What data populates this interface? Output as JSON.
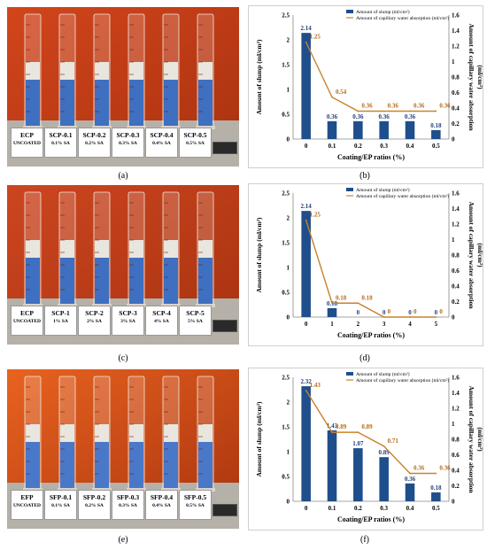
{
  "panels": {
    "a": "(a)",
    "b": "(b)",
    "c": "(c)",
    "d": "(d)",
    "e": "(e)",
    "f": "(f)"
  },
  "photo_a": {
    "cards": [
      {
        "main": "ECP",
        "sub": "UNCOATED"
      },
      {
        "main": "SCP-0.1",
        "sub": "0.1% SA"
      },
      {
        "main": "SCP-0.2",
        "sub": "0.2% SA"
      },
      {
        "main": "SCP-0.3",
        "sub": "0.3% SA"
      },
      {
        "main": "SCP-0.4",
        "sub": "0.4% SA"
      },
      {
        "main": "SCP-0.5",
        "sub": "0.5% SA"
      }
    ],
    "meter": "",
    "colors": {
      "wall": "#d2451c",
      "fill": "#3f6fc0"
    }
  },
  "photo_c": {
    "cards": [
      {
        "main": "ECP",
        "sub": "UNCOATED"
      },
      {
        "main": "SCP-1",
        "sub": "1% SA"
      },
      {
        "main": "SCP-2",
        "sub": "2% SA"
      },
      {
        "main": "SCP-3",
        "sub": "3% SA"
      },
      {
        "main": "SCP-4",
        "sub": "4% SA"
      },
      {
        "main": "SCP-5",
        "sub": "5% SA"
      }
    ],
    "meter": "",
    "colors": {
      "wall": "#cc4620",
      "fill": "#3f6fc0"
    }
  },
  "photo_e": {
    "cards": [
      {
        "main": "EFP",
        "sub": "UNCOATED"
      },
      {
        "main": "SFP-0.1",
        "sub": "0.1% SA"
      },
      {
        "main": "SFP-0.2",
        "sub": "0.2% SA"
      },
      {
        "main": "SFP-0.3",
        "sub": "0.3% SA"
      },
      {
        "main": "SFP-0.4",
        "sub": "0.4% SA"
      },
      {
        "main": "SFP-0.5",
        "sub": "0.5% SA"
      }
    ],
    "meter": "",
    "colors": {
      "wall": "#e8631f",
      "fill": "#4a78c8"
    }
  },
  "chart_data": [
    {
      "panel": "b",
      "type": "bar+line",
      "categories": [
        "0",
        "0.1",
        "0.2",
        "0.3",
        "0.4",
        "0.5"
      ],
      "series": [
        {
          "name": "Amount of slump (ml/cm²)",
          "type": "bar",
          "axis": "left",
          "values": [
            2.14,
            0.36,
            0.36,
            0.36,
            0.36,
            0.18
          ],
          "labels": [
            "2.14",
            "0.36",
            "0.36",
            "0.36",
            "0.36",
            "0.18"
          ]
        },
        {
          "name": "Amount of capillary water absorption (ml/cm²)",
          "type": "line",
          "axis": "right",
          "values": [
            1.25,
            0.54,
            0.36,
            0.36,
            0.36,
            0.36
          ],
          "labels": [
            "1.25",
            "0.54",
            "0.36",
            "0.36",
            "0.36",
            "0.36"
          ]
        }
      ],
      "xlabel": "Coating/EP ratios (%)",
      "ylabel": "Amount of slump (ml/cm²)",
      "y2label": "Amount of capillary water absorption (ml/cm²)",
      "ylim": [
        0,
        2.5
      ],
      "yticks": [
        "0",
        "0.5",
        "1",
        "1.5",
        "2",
        "2.5"
      ],
      "y2lim": [
        0,
        1.6
      ],
      "y2ticks": [
        "0",
        "0.2",
        "0.4",
        "0.6",
        "0.8",
        "1",
        "1.2",
        "1.4",
        "1.6"
      ],
      "legend": "top-right",
      "grid": false,
      "colors": {
        "bar": "#1f4e8c",
        "line": "#c9822b",
        "barlabel": "#1f3f7a",
        "linelabel": "#b36b1a"
      }
    },
    {
      "panel": "d",
      "type": "bar+line",
      "categories": [
        "0",
        "1",
        "2",
        "3",
        "4",
        "5"
      ],
      "series": [
        {
          "name": "Amount of slump (ml/cm²)",
          "type": "bar",
          "axis": "left",
          "values": [
            2.14,
            0.18,
            0,
            0,
            0,
            0
          ],
          "labels": [
            "2.14",
            "0.18",
            "0",
            "0",
            "0",
            "0"
          ]
        },
        {
          "name": "Amount of capillary water absorption (ml/cm²)",
          "type": "line",
          "axis": "right",
          "values": [
            1.25,
            0.18,
            0.18,
            0,
            0,
            0
          ],
          "labels": [
            "1.25",
            "0.18",
            "0.18",
            "0",
            "0",
            "0"
          ]
        }
      ],
      "xlabel": "Coating/EP ratios (%)",
      "ylabel": "Amount of slump (ml/cm²)",
      "y2label": "Amount of capillary water absorption (ml/cm²)",
      "ylim": [
        0,
        2.5
      ],
      "yticks": [
        "0",
        "0.5",
        "1",
        "1.5",
        "2",
        "2.5"
      ],
      "y2lim": [
        0,
        1.6
      ],
      "y2ticks": [
        "0",
        "0.2",
        "0.4",
        "0.6",
        "0.8",
        "1",
        "1.2",
        "1.4",
        "1.6"
      ],
      "legend": "top-right",
      "grid": false,
      "colors": {
        "bar": "#1f4e8c",
        "line": "#c9822b",
        "barlabel": "#1f3f7a",
        "linelabel": "#b36b1a"
      }
    },
    {
      "panel": "f",
      "type": "bar+line",
      "categories": [
        "0",
        "0.1",
        "0.2",
        "0.3",
        "0.4",
        "0.5"
      ],
      "series": [
        {
          "name": "Amount of slump (ml/cm²)",
          "type": "bar",
          "axis": "left",
          "values": [
            2.32,
            1.43,
            1.07,
            0.89,
            0.36,
            0.18
          ],
          "labels": [
            "2.32",
            "1.43",
            "1.07",
            "0.89",
            "0.36",
            "0.18"
          ]
        },
        {
          "name": "Amount of capillary water absorption (ml/cm²)",
          "type": "line",
          "axis": "right",
          "values": [
            1.43,
            0.89,
            0.89,
            0.71,
            0.36,
            0.36
          ],
          "labels": [
            "1.43",
            "0.89",
            "0.89",
            "0.71",
            "0.36",
            "0.36"
          ]
        }
      ],
      "xlabel": "Coating/EP ratios (%)",
      "ylabel": "Amount of slump (ml/cm²)",
      "y2label": "Amount of capillary water absorption (ml/cm²)",
      "ylim": [
        0,
        2.5
      ],
      "yticks": [
        "0",
        "0.5",
        "1",
        "1.5",
        "2",
        "2.5"
      ],
      "y2lim": [
        0,
        1.6
      ],
      "y2ticks": [
        "0",
        "0.2",
        "0.4",
        "0.6",
        "0.8",
        "1",
        "1.2",
        "1.4",
        "1.6"
      ],
      "legend": "top-right",
      "grid": false,
      "colors": {
        "bar": "#1f4e8c",
        "line": "#c9822b",
        "barlabel": "#1f3f7a",
        "linelabel": "#b36b1a"
      }
    }
  ]
}
